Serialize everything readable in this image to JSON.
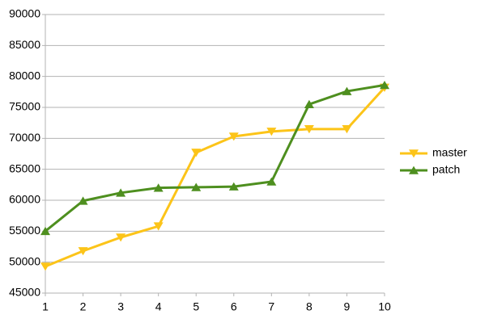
{
  "chart_data": {
    "type": "line",
    "x": [
      1,
      2,
      3,
      4,
      5,
      6,
      7,
      8,
      9,
      10
    ],
    "xlim": [
      1,
      10
    ],
    "xticks": [
      1,
      2,
      3,
      4,
      5,
      6,
      7,
      8,
      9,
      10
    ],
    "ylim": [
      45000,
      90000
    ],
    "yticks": [
      45000,
      50000,
      55000,
      60000,
      65000,
      70000,
      75000,
      80000,
      85000,
      90000
    ],
    "grid": true,
    "legend": "right",
    "series": [
      {
        "name": "master",
        "color": "#fcc419",
        "marker": "triangle-down",
        "values": [
          49300,
          51800,
          54000,
          55800,
          67700,
          70300,
          71100,
          71500,
          71500,
          78200
        ]
      },
      {
        "name": "patch",
        "color": "#4e8f1f",
        "marker": "triangle-up",
        "values": [
          55000,
          59900,
          61200,
          62000,
          62100,
          62200,
          63000,
          75500,
          77600,
          78600
        ]
      }
    ]
  }
}
